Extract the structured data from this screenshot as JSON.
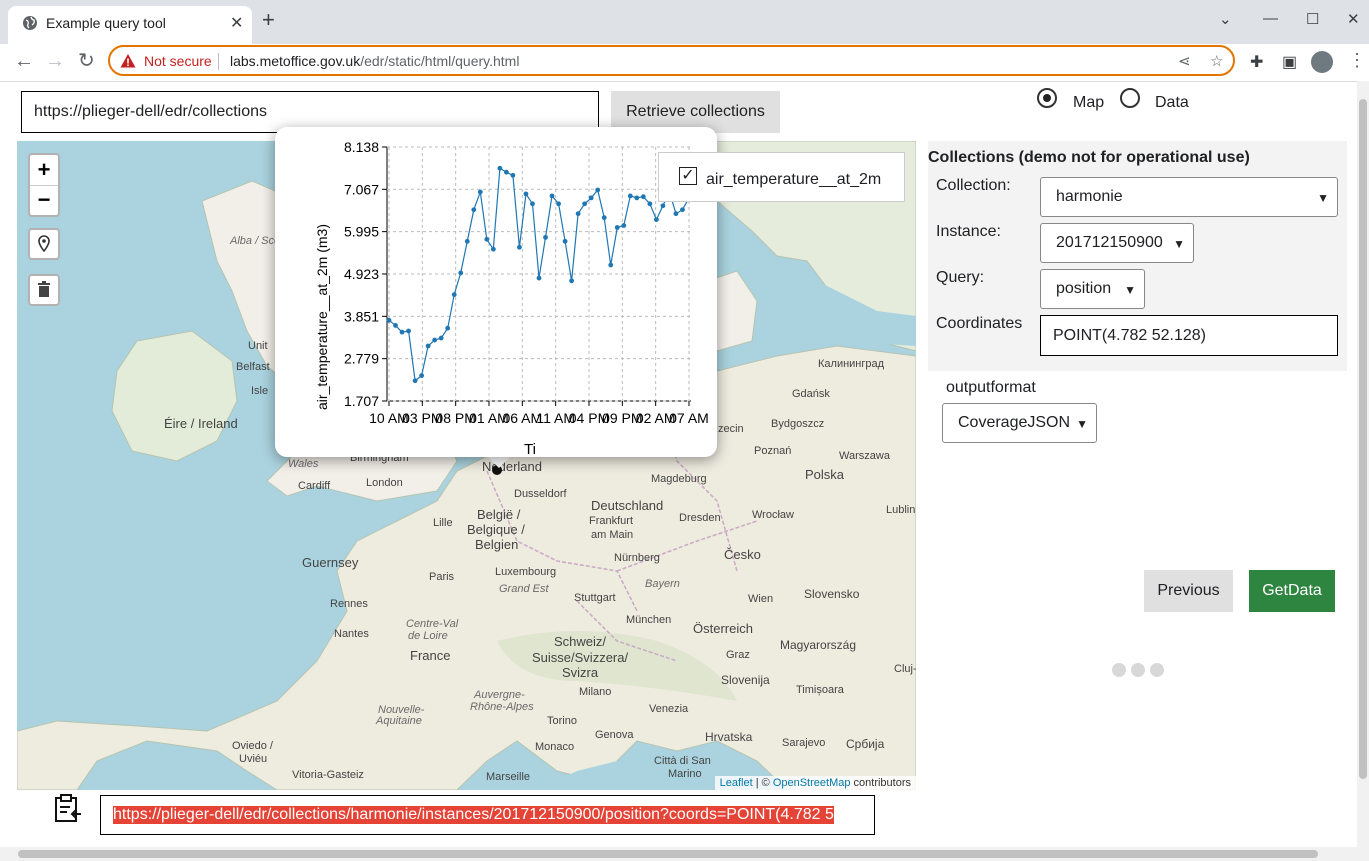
{
  "browser": {
    "tab_title": "Example query tool",
    "tab_close": "✕",
    "new_tab": "+",
    "security_label": "Not secure",
    "url_host": "labs.metoffice.gov.uk",
    "url_path": "/edr/static/html/query.html",
    "window_controls": [
      "⌄",
      "—",
      "☐",
      "✕"
    ],
    "icons": [
      "back-arrow-icon",
      "forward-arrow-icon",
      "reload-icon",
      "share-icon",
      "star-icon",
      "extensions-icon",
      "sidepanel-icon",
      "menu-icon"
    ]
  },
  "page": {
    "collections_url": "https://plieger-dell/edr/collections",
    "retrieve_button": "Retrieve collections",
    "view_modes": [
      {
        "label": "Map",
        "checked": true
      },
      {
        "label": "Data",
        "checked": false
      }
    ]
  },
  "map": {
    "zoom_in": "+",
    "zoom_out": "−",
    "attribution": {
      "leaflet": "Leaflet",
      "sep": " | © ",
      "osm": "OpenStreetMap",
      "suffix": " contributors"
    },
    "labels": [
      {
        "text": "Alba / Scot",
        "italic": true
      },
      {
        "text": "Unit",
        "italic": false
      },
      {
        "text": "Belfast",
        "italic": false
      },
      {
        "text": "Isle",
        "italic": false
      },
      {
        "text": "Éire / Ireland",
        "italic": false
      },
      {
        "text": "Wales",
        "italic": true
      },
      {
        "text": "Birmingham",
        "italic": false
      },
      {
        "text": "Cardiff",
        "italic": false
      },
      {
        "text": "London",
        "italic": false
      },
      {
        "text": "Nederland",
        "italic": false
      },
      {
        "text": "Dusseldorf",
        "italic": false
      },
      {
        "text": "Magdeburg",
        "italic": false
      },
      {
        "text": "Deutschland",
        "italic": false
      },
      {
        "text": "België /",
        "italic": false
      },
      {
        "text": "Belgique /",
        "italic": false
      },
      {
        "text": "Belgien",
        "italic": false
      },
      {
        "text": "Lille",
        "italic": false
      },
      {
        "text": "Frankfurt",
        "italic": false
      },
      {
        "text": "am Main",
        "italic": false
      },
      {
        "text": "Dresden",
        "italic": false
      },
      {
        "text": "Wrocław",
        "italic": false
      },
      {
        "text": "Guernsey",
        "italic": false
      },
      {
        "text": "Paris",
        "italic": false
      },
      {
        "text": "Luxembourg",
        "italic": false
      },
      {
        "text": "Grand Est",
        "italic": true
      },
      {
        "text": "Nürnberg",
        "italic": false
      },
      {
        "text": "Česko",
        "italic": false
      },
      {
        "text": "Bayern",
        "italic": true
      },
      {
        "text": "Rennes",
        "italic": false
      },
      {
        "text": "Stuttgart",
        "italic": false
      },
      {
        "text": "Wien",
        "italic": false
      },
      {
        "text": "Slovensko",
        "italic": false
      },
      {
        "text": "Nantes",
        "italic": false
      },
      {
        "text": "Centre-Val",
        "italic": true
      },
      {
        "text": "de Loire",
        "italic": true
      },
      {
        "text": "München",
        "italic": false
      },
      {
        "text": "Österreich",
        "italic": false
      },
      {
        "text": "Schweiz/",
        "italic": false
      },
      {
        "text": "Suisse/Svizzera/",
        "italic": false
      },
      {
        "text": "Svizra",
        "italic": false
      },
      {
        "text": "France",
        "italic": false
      },
      {
        "text": "Graz",
        "italic": false
      },
      {
        "text": "Magyarország",
        "italic": false
      },
      {
        "text": "Slovenija",
        "italic": false
      },
      {
        "text": "Milano",
        "italic": false
      },
      {
        "text": "Auvergne-",
        "italic": true
      },
      {
        "text": "Rhône-Alpes",
        "italic": true
      },
      {
        "text": "Nouvelle-",
        "italic": true
      },
      {
        "text": "Aquitaine",
        "italic": true
      },
      {
        "text": "Venezia",
        "italic": false
      },
      {
        "text": "Torino",
        "italic": false
      },
      {
        "text": "Hrvatska",
        "italic": false
      },
      {
        "text": "Timișoara",
        "italic": false
      },
      {
        "text": "Genova",
        "italic": false
      },
      {
        "text": "Monaco",
        "italic": false
      },
      {
        "text": "Sarajevo",
        "italic": false
      },
      {
        "text": "Србија",
        "italic": false
      },
      {
        "text": "Oviedo /",
        "italic": false
      },
      {
        "text": "Uviéu",
        "italic": false
      },
      {
        "text": "Vitoria-Gasteiz",
        "italic": false
      },
      {
        "text": "Marseille",
        "italic": false
      },
      {
        "text": "Città di San",
        "italic": false
      },
      {
        "text": "Marino",
        "italic": false
      },
      {
        "text": "Калининград",
        "italic": false
      },
      {
        "text": "Gdańsk",
        "italic": false
      },
      {
        "text": "Bydgoszcz",
        "italic": false
      },
      {
        "text": "Poznań",
        "italic": false
      },
      {
        "text": "Warszawa",
        "italic": false
      },
      {
        "text": "Polska",
        "italic": false
      },
      {
        "text": "Lublin",
        "italic": false
      },
      {
        "text": "zecin",
        "italic": false
      },
      {
        "text": "Cluj-",
        "italic": false
      }
    ]
  },
  "legend": {
    "label": "air_temperature__at_2m",
    "checked": true,
    "check_mark": "✓"
  },
  "chart_data": {
    "type": "line",
    "title": "",
    "ylabel": "air_temperature__at_2m (m3)",
    "xlabel": "Ti",
    "ylim": [
      1.707,
      8.138
    ],
    "yticks": [
      "1.707",
      "2.779",
      "3.851",
      "4.923",
      "5.995",
      "7.067",
      "8.138"
    ],
    "xticks": [
      "10 AM",
      "03 PM",
      "08 PM",
      "01 AM",
      "06 AM",
      "11 AM",
      "04 PM",
      "09 PM",
      "02 AM",
      "07 AM"
    ],
    "color": "#1f77b4",
    "series": [
      {
        "values": [
          3.75,
          3.62,
          3.45,
          3.48,
          2.22,
          2.35,
          3.1,
          3.25,
          3.3,
          3.55,
          4.4,
          4.95,
          5.75,
          6.55,
          7.0,
          5.8,
          5.55,
          7.6,
          7.5,
          7.42,
          5.6,
          6.95,
          6.7,
          4.82,
          5.85,
          6.9,
          6.7,
          5.75,
          4.75,
          6.45,
          6.7,
          6.85,
          7.05,
          6.35,
          5.15,
          6.1,
          6.15,
          6.9,
          6.85,
          6.88,
          6.7,
          6.3,
          6.65,
          7.0,
          6.45,
          6.55,
          6.85
        ]
      }
    ]
  },
  "panel": {
    "title": "Collections (demo not for operational use)",
    "collection_label": "Collection:",
    "collection_value": "harmonie",
    "instance_label": "Instance:",
    "instance_value": "201712150900",
    "query_label": "Query:",
    "query_value": "position",
    "coordinates_label": "Coordinates",
    "coordinates_value": "POINT(4.782 52.128)",
    "outputformat_label": "outputformat",
    "outputformat_value": "CoverageJSON",
    "previous_button": "Previous",
    "getdata_button": "GetData"
  },
  "query_url": "https://plieger-dell/edr/collections/harmonie/instances/201712150900/position?coords=POINT(4.782 5"
}
